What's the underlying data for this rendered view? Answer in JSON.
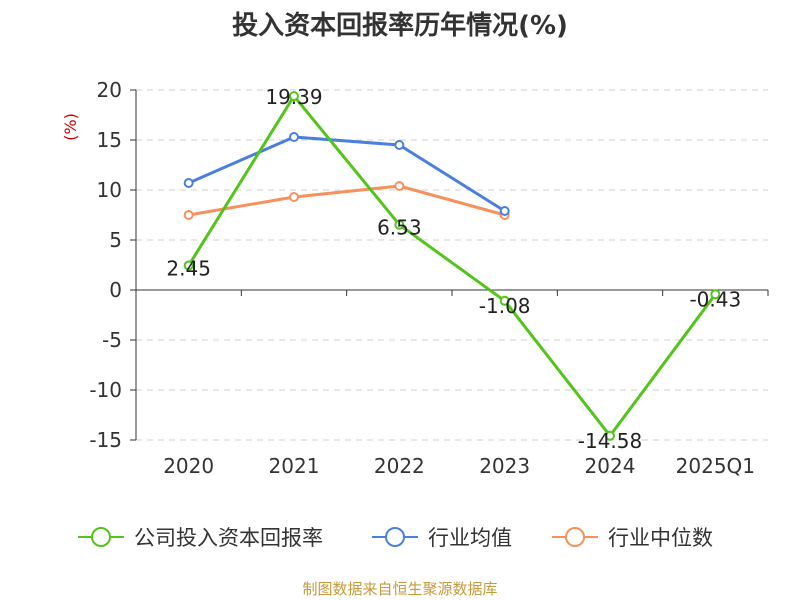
{
  "chart_data": {
    "type": "line",
    "title": "投入资本回报率历年情况(%)",
    "unit_label": "(%)",
    "categories": [
      "2020",
      "2021",
      "2022",
      "2023",
      "2024",
      "2025Q1"
    ],
    "ylim": [
      -15,
      20
    ],
    "yticks": [
      20,
      15,
      10,
      5,
      0,
      -5,
      -10,
      -15
    ],
    "grid": true,
    "legend_position": "bottom",
    "series": [
      {
        "name": "公司投入资本回报率",
        "color": "#52c41a",
        "marker": "circle",
        "show_labels": true,
        "values": [
          2.45,
          19.39,
          6.53,
          -1.08,
          -14.58,
          -0.43
        ],
        "labels": [
          "2.45",
          "19.39",
          "6.53",
          "-1.08",
          "-14.58",
          "-0.43"
        ]
      },
      {
        "name": "行业均值",
        "color": "#4a7fde",
        "marker": "circle",
        "show_labels": false,
        "values": [
          10.7,
          15.3,
          14.5,
          7.9,
          null,
          null
        ]
      },
      {
        "name": "行业中位数",
        "color": "#f5915c",
        "marker": "circle",
        "show_labels": false,
        "values": [
          7.5,
          9.3,
          10.4,
          7.5,
          null,
          null
        ]
      }
    ]
  },
  "footer": {
    "source": "制图数据来自恒生聚源数据库"
  }
}
